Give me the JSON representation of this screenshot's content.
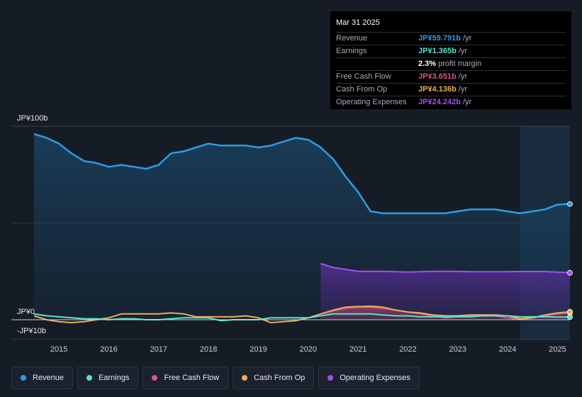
{
  "tooltip": {
    "date": "Mar 31 2025",
    "rows": [
      {
        "label": "Revenue",
        "value": "JP¥59.791b",
        "unit": "/yr",
        "color": "#2f9be6"
      },
      {
        "label": "Earnings",
        "value": "JP¥1.365b",
        "unit": "/yr",
        "color": "#5de2c8"
      },
      {
        "label": "",
        "value": "2.3%",
        "unit": "profit margin",
        "color": "#ffffff"
      },
      {
        "label": "Free Cash Flow",
        "value": "JP¥3.651b",
        "unit": "/yr",
        "color": "#d6558a"
      },
      {
        "label": "Cash From Op",
        "value": "JP¥4.136b",
        "unit": "/yr",
        "color": "#e8ad5a"
      },
      {
        "label": "Operating Expenses",
        "value": "JP¥24.242b",
        "unit": "/yr",
        "color": "#a44ff0"
      }
    ]
  },
  "legend": [
    {
      "label": "Revenue",
      "color": "#2f9be6"
    },
    {
      "label": "Earnings",
      "color": "#5de2c8"
    },
    {
      "label": "Free Cash Flow",
      "color": "#d6558a"
    },
    {
      "label": "Cash From Op",
      "color": "#e8ad5a"
    },
    {
      "label": "Operating Expenses",
      "color": "#a44ff0"
    }
  ],
  "chart_data": {
    "type": "area",
    "title": "",
    "xlabel": "",
    "ylabel": "",
    "y_tick_labels": [
      "JP¥100b",
      "JP¥0",
      "-JP¥10b"
    ],
    "x_tick_labels": [
      "2015",
      "2016",
      "2017",
      "2018",
      "2019",
      "2020",
      "2021",
      "2022",
      "2023",
      "2024",
      "2025"
    ],
    "xlim": [
      2014.45,
      2025.25
    ],
    "ylim": [
      -10,
      100
    ],
    "highlight_from": 2024.25,
    "grid": "horizontal",
    "legend_position": "bottom",
    "series": [
      {
        "name": "Revenue",
        "color": "#2f9be6",
        "fill": true,
        "points": [
          [
            2014.5,
            96
          ],
          [
            2014.75,
            94
          ],
          [
            2015.0,
            91
          ],
          [
            2015.25,
            86
          ],
          [
            2015.5,
            82
          ],
          [
            2015.75,
            81
          ],
          [
            2016.0,
            79
          ],
          [
            2016.25,
            80
          ],
          [
            2016.5,
            79
          ],
          [
            2016.75,
            78
          ],
          [
            2017.0,
            80
          ],
          [
            2017.25,
            86
          ],
          [
            2017.5,
            87
          ],
          [
            2017.75,
            89
          ],
          [
            2018.0,
            91
          ],
          [
            2018.25,
            90
          ],
          [
            2018.5,
            90
          ],
          [
            2018.75,
            90
          ],
          [
            2019.0,
            89
          ],
          [
            2019.25,
            90
          ],
          [
            2019.5,
            92
          ],
          [
            2019.75,
            94
          ],
          [
            2020.0,
            93
          ],
          [
            2020.25,
            89
          ],
          [
            2020.5,
            83
          ],
          [
            2020.75,
            74
          ],
          [
            2021.0,
            66
          ],
          [
            2021.25,
            56
          ],
          [
            2021.5,
            55
          ],
          [
            2021.75,
            55
          ],
          [
            2022.0,
            55
          ],
          [
            2022.5,
            55
          ],
          [
            2022.75,
            55
          ],
          [
            2023.0,
            56
          ],
          [
            2023.25,
            57
          ],
          [
            2023.5,
            57
          ],
          [
            2023.75,
            57
          ],
          [
            2024.0,
            56
          ],
          [
            2024.25,
            55
          ],
          [
            2024.5,
            56
          ],
          [
            2024.75,
            57
          ],
          [
            2025.0,
            59.5
          ],
          [
            2025.25,
            59.8
          ]
        ]
      },
      {
        "name": "Operating Expenses",
        "color": "#a44ff0",
        "fill": true,
        "points": [
          [
            2020.25,
            29
          ],
          [
            2020.5,
            27
          ],
          [
            2020.75,
            26
          ],
          [
            2021.0,
            25
          ],
          [
            2021.5,
            25
          ],
          [
            2021.75,
            24.8
          ],
          [
            2022.0,
            24.6
          ],
          [
            2022.25,
            24.8
          ],
          [
            2022.5,
            25
          ],
          [
            2022.75,
            25
          ],
          [
            2023.0,
            25
          ],
          [
            2023.25,
            24.8
          ],
          [
            2023.5,
            24.8
          ],
          [
            2024.0,
            24.8
          ],
          [
            2024.25,
            24.9
          ],
          [
            2024.75,
            24.9
          ],
          [
            2025.25,
            24.24
          ]
        ]
      },
      {
        "name": "Free Cash Flow",
        "color": "#d6558a",
        "fill": true,
        "points": [
          [
            2020.25,
            3
          ],
          [
            2020.5,
            4.5
          ],
          [
            2020.75,
            6
          ],
          [
            2021.0,
            6.5
          ],
          [
            2021.25,
            6.5
          ],
          [
            2021.5,
            6
          ],
          [
            2021.75,
            5
          ],
          [
            2022.0,
            4
          ],
          [
            2022.25,
            3
          ],
          [
            2022.5,
            2
          ],
          [
            2022.75,
            1
          ],
          [
            2023.0,
            1.5
          ],
          [
            2023.25,
            2
          ],
          [
            2023.5,
            2
          ],
          [
            2023.75,
            2
          ],
          [
            2024.0,
            1
          ],
          [
            2024.25,
            0
          ],
          [
            2024.5,
            1
          ],
          [
            2024.75,
            2
          ],
          [
            2025.0,
            3
          ],
          [
            2025.25,
            3.65
          ]
        ]
      },
      {
        "name": "Cash From Op",
        "color": "#e8ad5a",
        "fill": false,
        "points": [
          [
            2014.5,
            2
          ],
          [
            2014.75,
            0
          ],
          [
            2015.0,
            -1
          ],
          [
            2015.25,
            -1.5
          ],
          [
            2015.5,
            -1
          ],
          [
            2015.75,
            0
          ],
          [
            2016.0,
            1
          ],
          [
            2016.25,
            3
          ],
          [
            2016.5,
            3
          ],
          [
            2016.75,
            3
          ],
          [
            2017.0,
            3
          ],
          [
            2017.25,
            3.5
          ],
          [
            2017.5,
            3
          ],
          [
            2017.75,
            1.5
          ],
          [
            2018.0,
            1.5
          ],
          [
            2018.25,
            1.5
          ],
          [
            2018.5,
            1.5
          ],
          [
            2018.75,
            2
          ],
          [
            2019.0,
            1
          ],
          [
            2019.25,
            -1.5
          ],
          [
            2019.5,
            -1
          ],
          [
            2019.75,
            -0.5
          ],
          [
            2020.0,
            1
          ],
          [
            2020.25,
            3
          ],
          [
            2020.5,
            5
          ],
          [
            2020.75,
            6.5
          ],
          [
            2021.0,
            6.8
          ],
          [
            2021.25,
            7
          ],
          [
            2021.5,
            6.5
          ],
          [
            2021.75,
            5
          ],
          [
            2022.0,
            4
          ],
          [
            2022.25,
            3.5
          ],
          [
            2022.5,
            2.5
          ],
          [
            2022.75,
            2
          ],
          [
            2023.0,
            2
          ],
          [
            2023.25,
            2.5
          ],
          [
            2023.5,
            2.5
          ],
          [
            2023.75,
            2.5
          ],
          [
            2024.0,
            2
          ],
          [
            2024.25,
            0.5
          ],
          [
            2024.5,
            1
          ],
          [
            2024.75,
            2.5
          ],
          [
            2025.0,
            3.5
          ],
          [
            2025.25,
            4.14
          ]
        ]
      },
      {
        "name": "Earnings",
        "color": "#5de2c8",
        "fill": false,
        "points": [
          [
            2014.5,
            3
          ],
          [
            2014.75,
            2
          ],
          [
            2015.0,
            1.5
          ],
          [
            2015.25,
            1
          ],
          [
            2015.5,
            0.5
          ],
          [
            2015.75,
            0.5
          ],
          [
            2016.0,
            0
          ],
          [
            2016.25,
            0.5
          ],
          [
            2016.5,
            0.5
          ],
          [
            2016.75,
            0
          ],
          [
            2017.0,
            0
          ],
          [
            2017.25,
            0.5
          ],
          [
            2017.5,
            1
          ],
          [
            2017.75,
            1
          ],
          [
            2018.0,
            1
          ],
          [
            2018.25,
            -0.5
          ],
          [
            2018.5,
            0
          ],
          [
            2018.75,
            0
          ],
          [
            2019.0,
            0
          ],
          [
            2019.25,
            1
          ],
          [
            2019.5,
            1
          ],
          [
            2019.75,
            1
          ],
          [
            2020.0,
            1
          ],
          [
            2020.25,
            2
          ],
          [
            2020.5,
            3
          ],
          [
            2020.75,
            3
          ],
          [
            2021.0,
            3
          ],
          [
            2021.25,
            3
          ],
          [
            2021.5,
            2.5
          ],
          [
            2021.75,
            2
          ],
          [
            2022.0,
            2
          ],
          [
            2022.25,
            1.5
          ],
          [
            2022.5,
            1.5
          ],
          [
            2022.75,
            1.5
          ],
          [
            2023.0,
            1.5
          ],
          [
            2023.25,
            1.5
          ],
          [
            2023.5,
            2
          ],
          [
            2023.75,
            2
          ],
          [
            2024.0,
            2
          ],
          [
            2024.25,
            1.5
          ],
          [
            2024.5,
            1.5
          ],
          [
            2024.75,
            1.5
          ],
          [
            2025.0,
            1.4
          ],
          [
            2025.25,
            1.37
          ]
        ]
      }
    ]
  }
}
